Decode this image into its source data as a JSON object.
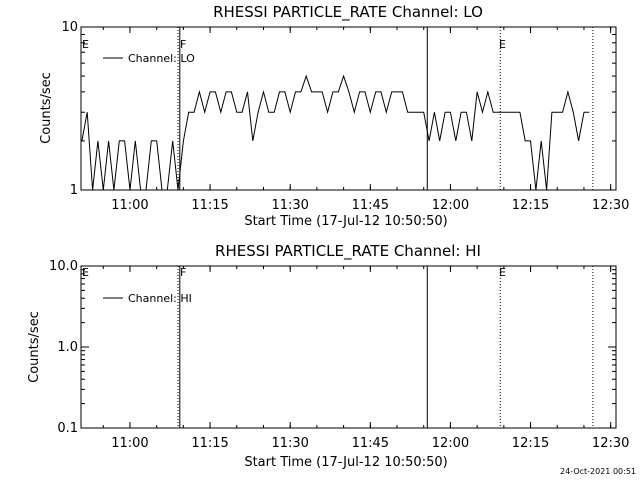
{
  "chart_data": [
    {
      "type": "line",
      "title": "RHESSI PARTICLE_RATE Channel: LO",
      "xlabel": "Start Time (17-Jul-12 10:50:50)",
      "ylabel": "Counts/sec",
      "yscale": "log",
      "ylim": [
        1,
        10
      ],
      "yticks": [
        "1",
        "10"
      ],
      "xlim": [
        "10:50:50",
        "12:31:00"
      ],
      "xticks": [
        "11:00",
        "11:15",
        "11:30",
        "11:45",
        "12:00",
        "12:15",
        "12:30"
      ],
      "series": [
        {
          "name": "Channel: LO",
          "x": [
            "10:51",
            "10:52",
            "10:53",
            "10:54",
            "10:55",
            "10:56",
            "10:57",
            "10:58",
            "10:59",
            "11:00",
            "11:01",
            "11:02",
            "11:03",
            "11:04",
            "11:05",
            "11:06",
            "11:07",
            "11:08",
            "11:09",
            "11:10",
            "11:11",
            "11:12",
            "11:13",
            "11:14",
            "11:15",
            "11:16",
            "11:17",
            "11:18",
            "11:19",
            "11:20",
            "11:21",
            "11:22",
            "11:23",
            "11:24",
            "11:25",
            "11:26",
            "11:27",
            "11:28",
            "11:29",
            "11:30",
            "11:31",
            "11:32",
            "11:33",
            "11:34",
            "11:35",
            "11:36",
            "11:37",
            "11:38",
            "11:39",
            "11:40",
            "11:41",
            "11:42",
            "11:43",
            "11:44",
            "11:45",
            "11:46",
            "11:47",
            "11:48",
            "11:49",
            "11:50",
            "11:51",
            "11:52",
            "11:53",
            "11:54",
            "11:55",
            "11:56",
            "11:57",
            "11:58",
            "11:59",
            "12:00",
            "12:01",
            "12:02",
            "12:03",
            "12:04",
            "12:05",
            "12:06",
            "12:07",
            "12:08",
            "12:09",
            "12:10",
            "12:11",
            "12:12",
            "12:13",
            "12:14",
            "12:15",
            "12:16",
            "12:17",
            "12:18",
            "12:19",
            "12:20",
            "12:21",
            "12:22",
            "12:23",
            "12:24",
            "12:25",
            "12:26"
          ],
          "values": [
            2,
            3,
            1,
            2,
            1,
            2,
            1,
            2,
            2,
            1,
            2,
            1,
            1,
            2,
            2,
            1,
            1,
            2,
            1,
            2,
            3,
            3,
            4,
            3,
            4,
            4,
            3,
            4,
            4,
            3,
            3,
            4,
            2,
            3,
            4,
            3,
            3,
            4,
            4,
            3,
            4,
            4,
            5,
            4,
            4,
            4,
            3,
            4,
            4,
            5,
            4,
            3,
            4,
            4,
            3,
            4,
            4,
            3,
            4,
            4,
            4,
            3,
            3,
            3,
            3,
            2,
            3,
            2,
            3,
            3,
            2,
            3,
            3,
            2,
            4,
            3,
            4,
            3,
            3,
            3,
            3,
            3,
            3,
            2,
            2,
            1,
            2,
            1,
            3,
            3,
            3,
            4,
            3,
            2,
            3,
            3
          ]
        }
      ],
      "flags": [
        "E",
        "F",
        "E"
      ]
    },
    {
      "type": "line",
      "title": "RHESSI PARTICLE_RATE Channel: HI",
      "xlabel": "Start Time (17-Jul-12 10:50:50)",
      "ylabel": "Counts/sec",
      "yscale": "log",
      "ylim": [
        0.1,
        10
      ],
      "yticks": [
        "0.1",
        "1.0",
        "10.0"
      ],
      "xlim": [
        "10:50:50",
        "12:31:00"
      ],
      "xticks": [
        "11:00",
        "11:15",
        "11:30",
        "11:45",
        "12:00",
        "12:15",
        "12:30"
      ],
      "series": [
        {
          "name": "Channel: HI",
          "x": [],
          "values": []
        }
      ],
      "flags": [
        "E",
        "F",
        "E"
      ]
    }
  ],
  "footer": {
    "timestamp": "24-Oct-2021 00:51"
  }
}
